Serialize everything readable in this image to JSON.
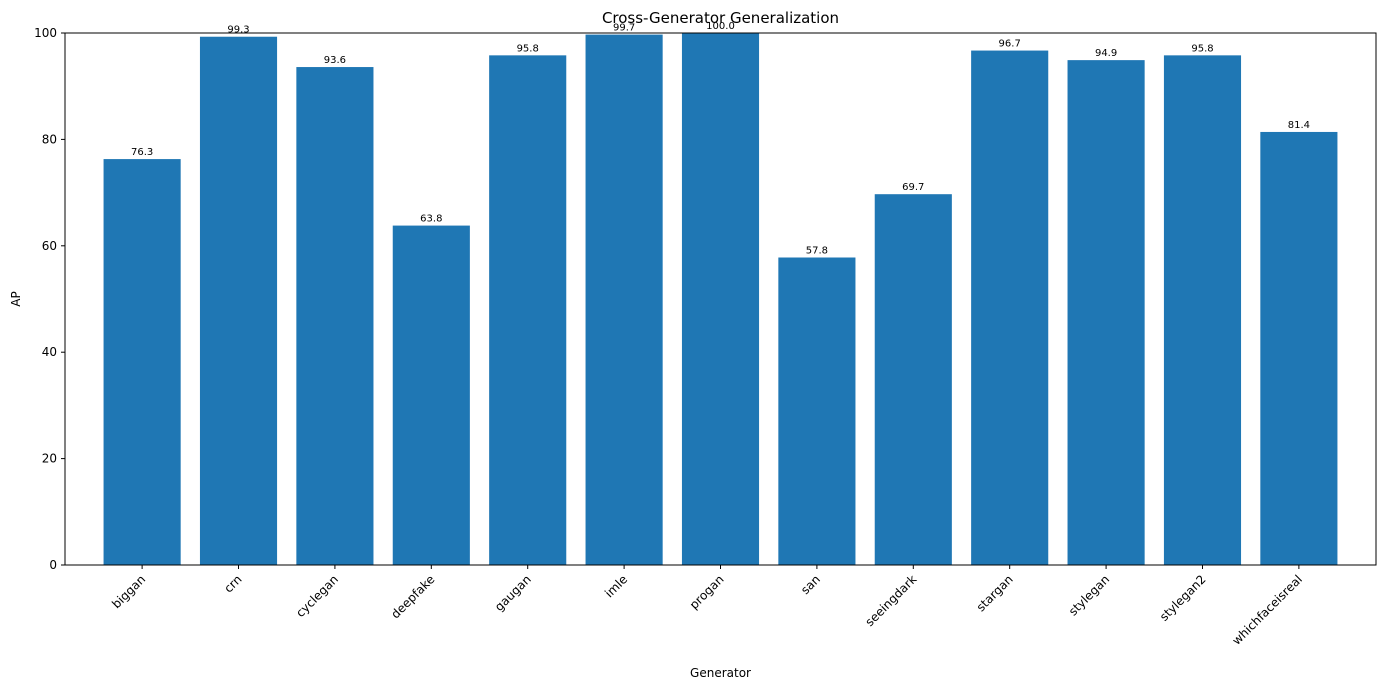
{
  "chart_data": {
    "type": "bar",
    "title": "Cross-Generator Generalization",
    "xlabel": "Generator",
    "ylabel": "AP",
    "ylim": [
      0,
      100
    ],
    "yticks": [
      0,
      20,
      40,
      60,
      80,
      100
    ],
    "grid": false,
    "bar_color": "#1f77b4",
    "categories": [
      "biggan",
      "crn",
      "cyclegan",
      "deepfake",
      "gaugan",
      "imle",
      "progan",
      "san",
      "seeingdark",
      "stargan",
      "stylegan",
      "stylegan2",
      "whichfaceisreal"
    ],
    "values": [
      76.3,
      99.3,
      93.6,
      63.8,
      95.8,
      99.7,
      100.0,
      57.8,
      69.7,
      96.7,
      94.9,
      95.8,
      81.4
    ],
    "value_labels": [
      "76.3",
      "99.3",
      "93.6",
      "63.8",
      "95.8",
      "99.7",
      "100.0",
      "57.8",
      "69.7",
      "96.7",
      "94.9",
      "95.8",
      "81.4"
    ],
    "x_tick_rotation": 45
  }
}
